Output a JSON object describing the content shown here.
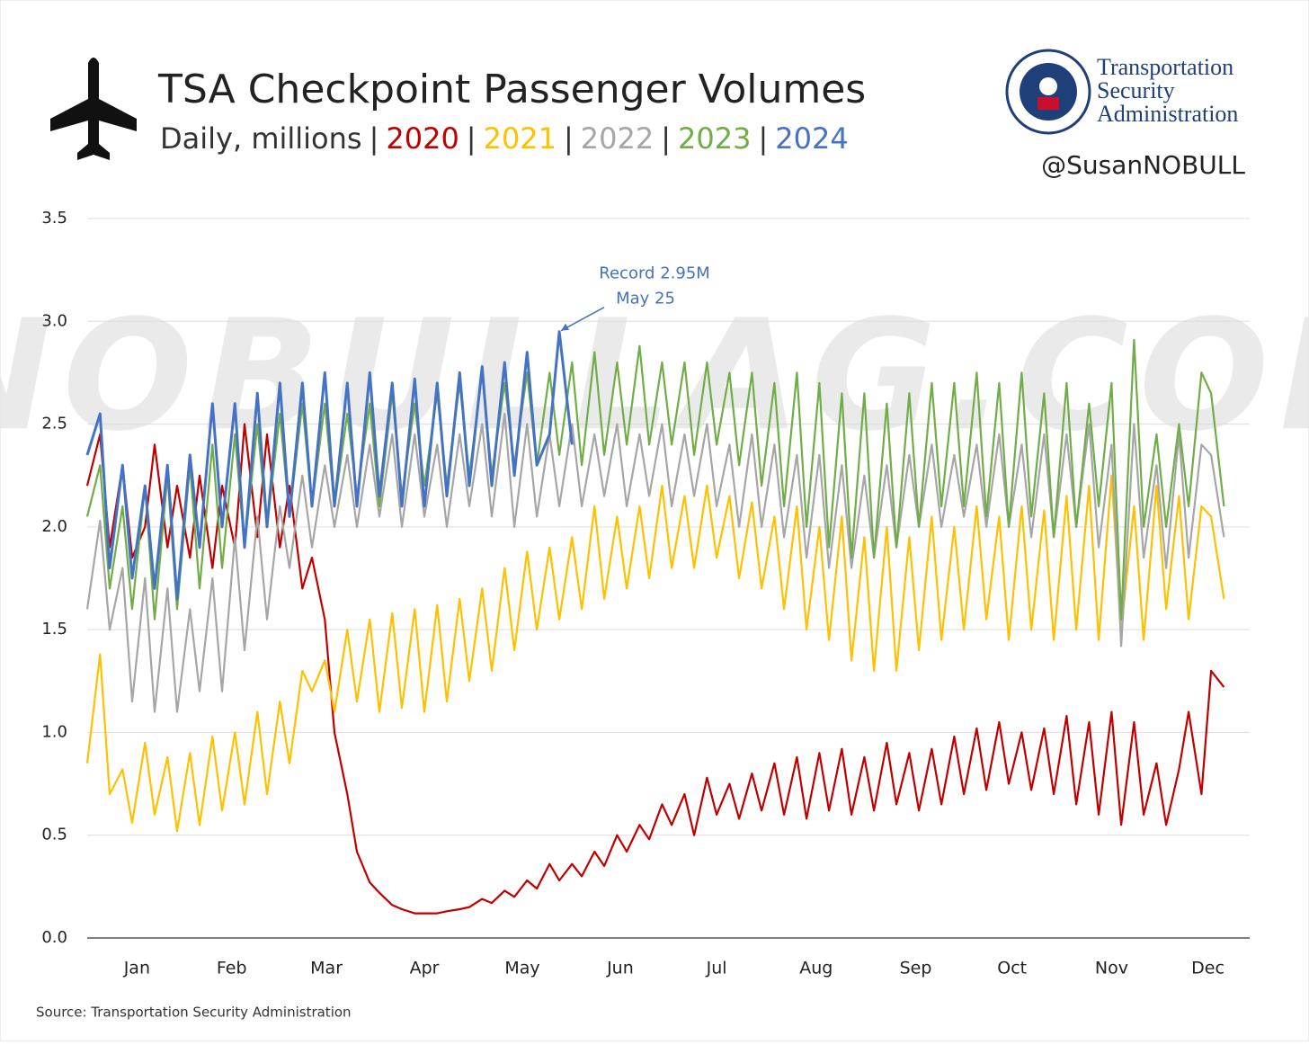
{
  "chart_data": {
    "type": "line",
    "title": "TSA Checkpoint Passenger Volumes",
    "subtitle": "Daily, millions",
    "subtitle_separator": "|",
    "logo_text": [
      "Transportation",
      "Security",
      "Administration"
    ],
    "credit": "@SusanNOBULL",
    "watermark": "NOBULLAG.COM",
    "source": "Source: Transportation Security Administration",
    "annotation": {
      "lines": [
        "Record 2.95M",
        "May 25"
      ],
      "x": 147,
      "y": 2.95
    },
    "xlim": [
      0,
      362
    ],
    "xticks": [
      {
        "value": 15.5,
        "label": "Jan"
      },
      {
        "value": 45,
        "label": "Feb"
      },
      {
        "value": 74.5,
        "label": "Mar"
      },
      {
        "value": 105,
        "label": "Apr"
      },
      {
        "value": 135.5,
        "label": "May"
      },
      {
        "value": 166,
        "label": "Jun"
      },
      {
        "value": 196,
        "label": "Jul"
      },
      {
        "value": 227,
        "label": "Aug"
      },
      {
        "value": 258,
        "label": "Sep"
      },
      {
        "value": 288,
        "label": "Oct"
      },
      {
        "value": 319,
        "label": "Nov"
      },
      {
        "value": 349,
        "label": "Dec"
      }
    ],
    "ylim": [
      0,
      3.5
    ],
    "yticks": [
      {
        "value": 0,
        "label": "0.0"
      },
      0.5,
      {
        "value": 1,
        "label": "1.0"
      },
      1.5,
      {
        "value": 2,
        "label": "2.0"
      },
      2.5,
      {
        "value": 3,
        "label": "3.0"
      },
      3.5
    ],
    "grid": true,
    "x": [
      0,
      4,
      7,
      11,
      14,
      18,
      21,
      25,
      28,
      32,
      35,
      39,
      42,
      46,
      49,
      53,
      56,
      60,
      63,
      67,
      70,
      74,
      77,
      81,
      84,
      88,
      91,
      95,
      98,
      102,
      105,
      109,
      112,
      116,
      119,
      123,
      126,
      130,
      133,
      137,
      140,
      144,
      147,
      151,
      154,
      158,
      161,
      165,
      168,
      172,
      175,
      179,
      182,
      186,
      189,
      193,
      196,
      200,
      203,
      207,
      210,
      214,
      217,
      221,
      224,
      228,
      231,
      235,
      238,
      242,
      245,
      249,
      252,
      256,
      259,
      263,
      266,
      270,
      273,
      277,
      280,
      284,
      287,
      291,
      294,
      298,
      301,
      305,
      308,
      312,
      315,
      319,
      322,
      326,
      329,
      333,
      336,
      340,
      343,
      347,
      350,
      354
    ],
    "series": [
      {
        "name": "2020",
        "color": "#c00000",
        "values": [
          2.2,
          2.45,
          1.9,
          2.3,
          1.85,
          2.0,
          2.4,
          1.9,
          2.2,
          1.85,
          2.25,
          1.8,
          2.2,
          1.9,
          2.5,
          1.95,
          2.45,
          1.9,
          2.2,
          1.7,
          1.85,
          1.55,
          1.0,
          0.7,
          0.42,
          0.27,
          0.22,
          0.16,
          0.14,
          0.12,
          0.12,
          0.12,
          0.13,
          0.14,
          0.15,
          0.19,
          0.17,
          0.23,
          0.2,
          0.28,
          0.24,
          0.36,
          0.28,
          0.36,
          0.3,
          0.42,
          0.35,
          0.5,
          0.42,
          0.55,
          0.48,
          0.65,
          0.55,
          0.7,
          0.5,
          0.78,
          0.6,
          0.75,
          0.58,
          0.8,
          0.62,
          0.85,
          0.6,
          0.88,
          0.58,
          0.9,
          0.62,
          0.92,
          0.6,
          0.88,
          0.62,
          0.95,
          0.65,
          0.9,
          0.62,
          0.92,
          0.65,
          0.98,
          0.7,
          1.02,
          0.72,
          1.05,
          0.75,
          1.0,
          0.72,
          1.02,
          0.7,
          1.08,
          0.65,
          1.05,
          0.6,
          1.1,
          0.55,
          1.05,
          0.6,
          0.85,
          0.55,
          0.82,
          1.1,
          0.7,
          1.3,
          1.22
        ]
      },
      {
        "name": "2021",
        "color": "#ffc000",
        "values": [
          0.85,
          1.38,
          0.7,
          0.82,
          0.56,
          0.95,
          0.6,
          0.88,
          0.52,
          0.9,
          0.55,
          0.98,
          0.62,
          1.0,
          0.65,
          1.1,
          0.7,
          1.15,
          0.85,
          1.3,
          1.2,
          1.35,
          1.1,
          1.5,
          1.15,
          1.55,
          1.1,
          1.58,
          1.12,
          1.6,
          1.1,
          1.62,
          1.15,
          1.65,
          1.25,
          1.7,
          1.3,
          1.8,
          1.4,
          1.88,
          1.5,
          1.9,
          1.55,
          1.95,
          1.6,
          2.1,
          1.65,
          2.05,
          1.7,
          2.1,
          1.75,
          2.2,
          1.8,
          2.15,
          1.8,
          2.2,
          1.85,
          2.15,
          1.75,
          2.12,
          1.7,
          2.05,
          1.6,
          2.1,
          1.5,
          2.0,
          1.45,
          2.05,
          1.35,
          1.95,
          1.3,
          2.0,
          1.3,
          1.95,
          1.4,
          2.05,
          1.45,
          2.0,
          1.5,
          2.1,
          1.55,
          2.05,
          1.45,
          2.1,
          1.5,
          2.08,
          1.45,
          2.15,
          1.5,
          2.2,
          1.45,
          2.25,
          1.5,
          2.1,
          1.45,
          2.2,
          1.6,
          2.15,
          1.55,
          2.1,
          2.05,
          1.65
        ]
      },
      {
        "name": "2022",
        "color": "#a6a6a6",
        "values": [
          1.6,
          2.03,
          1.5,
          1.8,
          1.15,
          1.75,
          1.1,
          1.7,
          1.1,
          1.6,
          1.2,
          1.75,
          1.2,
          1.95,
          1.4,
          2.05,
          1.55,
          2.1,
          1.8,
          2.25,
          1.9,
          2.3,
          2.0,
          2.35,
          2.0,
          2.4,
          2.05,
          2.45,
          2.0,
          2.45,
          2.05,
          2.4,
          2.0,
          2.45,
          2.1,
          2.5,
          2.05,
          2.55,
          2.0,
          2.5,
          2.05,
          2.45,
          2.1,
          2.5,
          2.1,
          2.45,
          2.15,
          2.5,
          2.1,
          2.45,
          2.15,
          2.5,
          2.1,
          2.45,
          2.15,
          2.5,
          2.1,
          2.4,
          2.0,
          2.45,
          2.0,
          2.4,
          1.95,
          2.35,
          1.85,
          2.35,
          1.8,
          2.3,
          1.8,
          2.25,
          1.85,
          2.3,
          1.9,
          2.35,
          2.0,
          2.4,
          2.0,
          2.35,
          2.05,
          2.4,
          2.0,
          2.45,
          2.0,
          2.4,
          1.95,
          2.45,
          1.95,
          2.45,
          2.0,
          2.5,
          1.9,
          2.4,
          1.42,
          2.5,
          1.85,
          2.3,
          1.8,
          2.45,
          1.85,
          2.4,
          2.35,
          1.95
        ]
      },
      {
        "name": "2023",
        "color": "#70ad47",
        "values": [
          2.05,
          2.3,
          1.7,
          2.1,
          1.6,
          2.2,
          1.55,
          2.25,
          1.6,
          2.3,
          1.7,
          2.4,
          1.8,
          2.45,
          1.9,
          2.5,
          2.0,
          2.55,
          2.05,
          2.6,
          2.1,
          2.6,
          2.1,
          2.55,
          2.15,
          2.6,
          2.1,
          2.65,
          2.15,
          2.6,
          2.2,
          2.65,
          2.2,
          2.7,
          2.25,
          2.75,
          2.25,
          2.7,
          2.3,
          2.75,
          2.3,
          2.75,
          2.35,
          2.8,
          2.3,
          2.85,
          2.35,
          2.8,
          2.4,
          2.88,
          2.4,
          2.8,
          2.4,
          2.8,
          2.35,
          2.8,
          2.4,
          2.75,
          2.3,
          2.75,
          2.2,
          2.7,
          2.1,
          2.75,
          2.0,
          2.7,
          1.9,
          2.65,
          1.85,
          2.65,
          1.85,
          2.6,
          1.9,
          2.65,
          2.0,
          2.7,
          2.1,
          2.7,
          2.1,
          2.75,
          2.05,
          2.7,
          2.0,
          2.75,
          2.05,
          2.65,
          1.95,
          2.7,
          2.0,
          2.6,
          2.1,
          2.7,
          1.55,
          2.91,
          2.0,
          2.45,
          2.0,
          2.5,
          2.1,
          2.75,
          2.65,
          2.1
        ]
      },
      {
        "name": "2024",
        "color": "#4472c4",
        "values": [
          2.35,
          2.55,
          1.8,
          2.3,
          1.75,
          2.2,
          1.7,
          2.3,
          1.65,
          2.35,
          1.9,
          2.6,
          2.0,
          2.6,
          1.9,
          2.65,
          2.0,
          2.7,
          2.05,
          2.7,
          2.1,
          2.75,
          2.1,
          2.7,
          2.1,
          2.75,
          2.15,
          2.7,
          2.1,
          2.72,
          2.1,
          2.7,
          2.15,
          2.75,
          2.2,
          2.78,
          2.2,
          2.8,
          2.25,
          2.85,
          2.3,
          2.45,
          2.95,
          2.4,
          null,
          null,
          null,
          null,
          null,
          null,
          null,
          null,
          null,
          null,
          null,
          null,
          null,
          null,
          null,
          null,
          null,
          null,
          null,
          null,
          null,
          null,
          null,
          null,
          null,
          null,
          null,
          null,
          null,
          null,
          null,
          null,
          null,
          null,
          null,
          null,
          null,
          null,
          null,
          null,
          null,
          null,
          null,
          null,
          null,
          null,
          null,
          null,
          null,
          null,
          null,
          null,
          null,
          null,
          null,
          null,
          null,
          null
        ]
      }
    ]
  }
}
